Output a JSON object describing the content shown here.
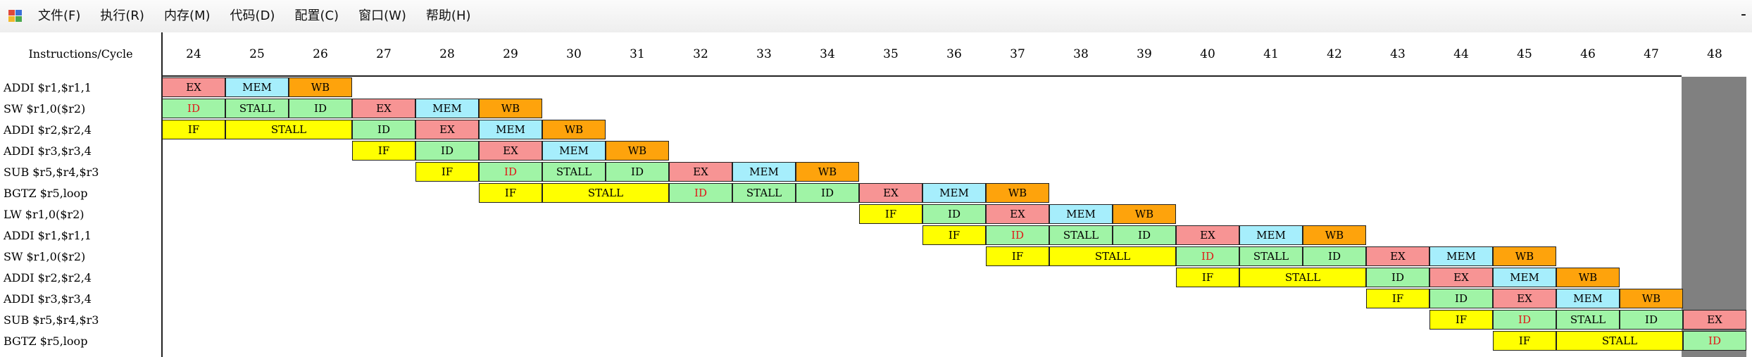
{
  "menubar": {
    "items": [
      "文件(F)",
      "执行(R)",
      "内存(M)",
      "代码(D)",
      "配置(C)",
      "窗口(W)",
      "帮助(H)"
    ],
    "min_glyph": "-"
  },
  "table": {
    "corner_label": "Instructions/Cycle",
    "cycles": [
      "24",
      "25",
      "26",
      "27",
      "28",
      "29",
      "30",
      "31",
      "32",
      "33",
      "34",
      "35",
      "36",
      "37",
      "38",
      "39",
      "40",
      "41",
      "42",
      "43",
      "44",
      "45",
      "46",
      "47",
      "48"
    ],
    "instructions": [
      "ADDI $r1,$r1,1",
      "SW $r1,0($r2)",
      "ADDI $r2,$r2,4",
      "ADDI $r3,$r3,4",
      "SUB $r5,$r4,$r3",
      "BGTZ $r5,loop",
      "LW $r1,0($r2)",
      "ADDI $r1,$r1,1",
      "SW $r1,0($r2)",
      "ADDI $r2,$r2,4",
      "ADDI $r3,$r3,4",
      "SUB $r5,$r4,$r3",
      "BGTZ $r5,loop"
    ],
    "stage_colors": {
      "IF": "#ffff00",
      "ID": "#a0f4a6",
      "EX": "#f79494",
      "MEM": "#a6eefc",
      "WB": "#fea30c",
      "stall_decode": "#a0f4a6",
      "stall_fetch": "#ffff00",
      "hazard_text": "#e01818"
    }
  },
  "pipeline": [
    {
      "row": 0,
      "stages": [
        {
          "label": "EX",
          "start": 0,
          "span": 1
        },
        {
          "label": "MEM",
          "start": 1,
          "span": 1
        },
        {
          "label": "WB",
          "start": 2,
          "span": 1
        }
      ]
    },
    {
      "row": 1,
      "stages": [
        {
          "label": "ID",
          "start": 0,
          "span": 1,
          "red": true
        },
        {
          "label": "STALL",
          "start": 1,
          "span": 1,
          "kind": "ID"
        },
        {
          "label": "ID",
          "start": 2,
          "span": 1
        },
        {
          "label": "EX",
          "start": 3,
          "span": 1
        },
        {
          "label": "MEM",
          "start": 4,
          "span": 1
        },
        {
          "label": "WB",
          "start": 5,
          "span": 1
        }
      ]
    },
    {
      "row": 2,
      "stages": [
        {
          "label": "IF",
          "start": 0,
          "span": 1
        },
        {
          "label": "STALL",
          "start": 1,
          "span": 2,
          "kind": "IF"
        },
        {
          "label": "ID",
          "start": 3,
          "span": 1
        },
        {
          "label": "EX",
          "start": 4,
          "span": 1
        },
        {
          "label": "MEM",
          "start": 5,
          "span": 1
        },
        {
          "label": "WB",
          "start": 6,
          "span": 1
        }
      ]
    },
    {
      "row": 3,
      "stages": [
        {
          "label": "IF",
          "start": 3,
          "span": 1
        },
        {
          "label": "ID",
          "start": 4,
          "span": 1
        },
        {
          "label": "EX",
          "start": 5,
          "span": 1
        },
        {
          "label": "MEM",
          "start": 6,
          "span": 1
        },
        {
          "label": "WB",
          "start": 7,
          "span": 1
        }
      ]
    },
    {
      "row": 4,
      "stages": [
        {
          "label": "IF",
          "start": 4,
          "span": 1
        },
        {
          "label": "ID",
          "start": 5,
          "span": 1,
          "red": true
        },
        {
          "label": "STALL",
          "start": 6,
          "span": 1,
          "kind": "ID"
        },
        {
          "label": "ID",
          "start": 7,
          "span": 1
        },
        {
          "label": "EX",
          "start": 8,
          "span": 1
        },
        {
          "label": "MEM",
          "start": 9,
          "span": 1
        },
        {
          "label": "WB",
          "start": 10,
          "span": 1
        }
      ]
    },
    {
      "row": 5,
      "stages": [
        {
          "label": "IF",
          "start": 5,
          "span": 1
        },
        {
          "label": "STALL",
          "start": 6,
          "span": 2,
          "kind": "IF"
        },
        {
          "label": "ID",
          "start": 8,
          "span": 1,
          "red": true
        },
        {
          "label": "STALL",
          "start": 9,
          "span": 1,
          "kind": "ID"
        },
        {
          "label": "ID",
          "start": 10,
          "span": 1
        },
        {
          "label": "EX",
          "start": 11,
          "span": 1
        },
        {
          "label": "MEM",
          "start": 12,
          "span": 1
        },
        {
          "label": "WB",
          "start": 13,
          "span": 1
        }
      ]
    },
    {
      "row": 6,
      "stages": [
        {
          "label": "IF",
          "start": 11,
          "span": 1
        },
        {
          "label": "ID",
          "start": 12,
          "span": 1
        },
        {
          "label": "EX",
          "start": 13,
          "span": 1
        },
        {
          "label": "MEM",
          "start": 14,
          "span": 1
        },
        {
          "label": "WB",
          "start": 15,
          "span": 1
        }
      ]
    },
    {
      "row": 7,
      "stages": [
        {
          "label": "IF",
          "start": 12,
          "span": 1
        },
        {
          "label": "ID",
          "start": 13,
          "span": 1,
          "red": true
        },
        {
          "label": "STALL",
          "start": 14,
          "span": 1,
          "kind": "ID"
        },
        {
          "label": "ID",
          "start": 15,
          "span": 1
        },
        {
          "label": "EX",
          "start": 16,
          "span": 1
        },
        {
          "label": "MEM",
          "start": 17,
          "span": 1
        },
        {
          "label": "WB",
          "start": 18,
          "span": 1
        }
      ]
    },
    {
      "row": 8,
      "stages": [
        {
          "label": "IF",
          "start": 13,
          "span": 1
        },
        {
          "label": "STALL",
          "start": 14,
          "span": 2,
          "kind": "IF"
        },
        {
          "label": "ID",
          "start": 16,
          "span": 1,
          "red": true
        },
        {
          "label": "STALL",
          "start": 17,
          "span": 1,
          "kind": "ID"
        },
        {
          "label": "ID",
          "start": 18,
          "span": 1
        },
        {
          "label": "EX",
          "start": 19,
          "span": 1
        },
        {
          "label": "MEM",
          "start": 20,
          "span": 1
        },
        {
          "label": "WB",
          "start": 21,
          "span": 1
        }
      ]
    },
    {
      "row": 9,
      "stages": [
        {
          "label": "IF",
          "start": 16,
          "span": 1
        },
        {
          "label": "STALL",
          "start": 17,
          "span": 2,
          "kind": "IF"
        },
        {
          "label": "ID",
          "start": 19,
          "span": 1
        },
        {
          "label": "EX",
          "start": 20,
          "span": 1
        },
        {
          "label": "MEM",
          "start": 21,
          "span": 1
        },
        {
          "label": "WB",
          "start": 22,
          "span": 1
        }
      ]
    },
    {
      "row": 10,
      "stages": [
        {
          "label": "IF",
          "start": 19,
          "span": 1
        },
        {
          "label": "ID",
          "start": 20,
          "span": 1
        },
        {
          "label": "EX",
          "start": 21,
          "span": 1
        },
        {
          "label": "MEM",
          "start": 22,
          "span": 1
        },
        {
          "label": "WB",
          "start": 23,
          "span": 1
        }
      ]
    },
    {
      "row": 11,
      "stages": [
        {
          "label": "IF",
          "start": 20,
          "span": 1
        },
        {
          "label": "ID",
          "start": 21,
          "span": 1,
          "red": true
        },
        {
          "label": "STALL",
          "start": 22,
          "span": 1,
          "kind": "ID"
        },
        {
          "label": "ID",
          "start": 23,
          "span": 1
        },
        {
          "label": "EX",
          "start": 24,
          "span": 1
        }
      ]
    },
    {
      "row": 12,
      "stages": [
        {
          "label": "IF",
          "start": 21,
          "span": 1
        },
        {
          "label": "STALL",
          "start": 22,
          "span": 2,
          "kind": "IF"
        },
        {
          "label": "ID",
          "start": 24,
          "span": 1,
          "red": true
        }
      ]
    }
  ]
}
